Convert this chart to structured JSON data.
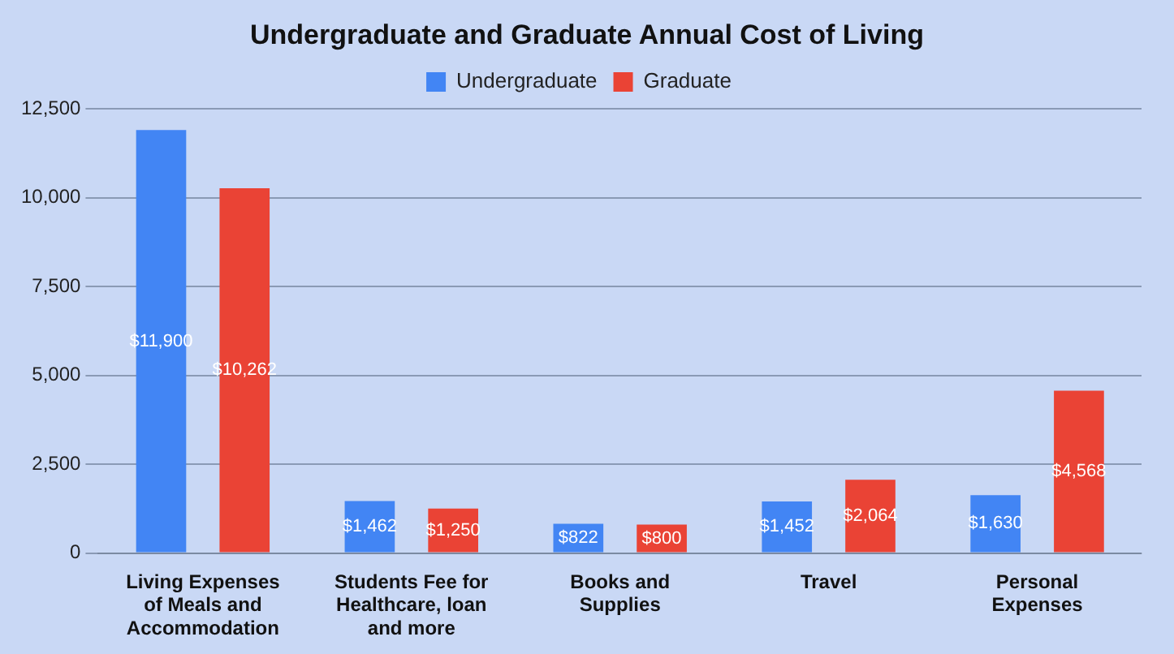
{
  "chart_data": {
    "type": "bar",
    "title": "Undergraduate and Graduate Annual Cost of Living",
    "categories": [
      "Living Expenses of Meals and Accommodation",
      "Students Fee for Healthcare, loan and more",
      "Books and Supplies",
      "Travel",
      "Personal Expenses"
    ],
    "series": [
      {
        "name": "Undergraduate",
        "color": "#4285f4",
        "values": [
          11900,
          1462,
          822,
          1452,
          1630
        ],
        "value_labels": [
          "$11,900",
          "$1,462",
          "$822",
          "$1,452",
          "$1,630"
        ]
      },
      {
        "name": "Graduate",
        "color": "#ea4335",
        "values": [
          10262,
          1250,
          800,
          2064,
          4568
        ],
        "value_labels": [
          "$10,262",
          "$1,250",
          "$800",
          "$2,064",
          "$4,568"
        ]
      }
    ],
    "ylim": [
      0,
      12500
    ],
    "yticks": [
      0,
      {
        "value": 2500,
        "label": "2,500"
      },
      {
        "value": 5000,
        "label": "5,000"
      },
      {
        "value": 7500,
        "label": "7,500"
      },
      {
        "value": 10000,
        "label": "10,000"
      },
      {
        "value": 12500,
        "label": "12,500"
      }
    ],
    "grid": "y",
    "legend": "top"
  }
}
